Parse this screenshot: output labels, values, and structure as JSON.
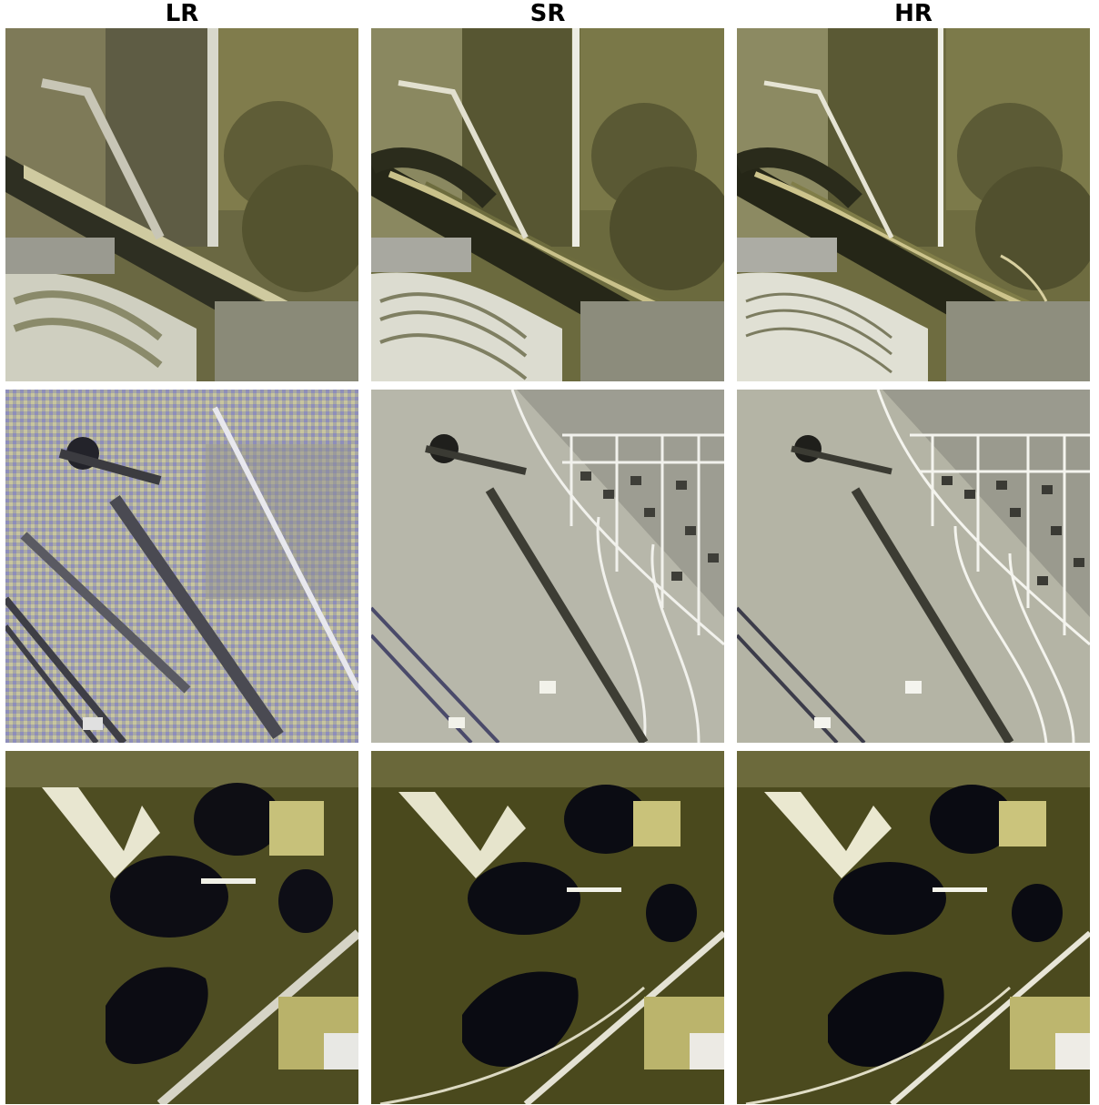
{
  "columns": [
    {
      "title": "LR"
    },
    {
      "title": "SR"
    },
    {
      "title": "HR"
    }
  ],
  "rows": [
    {
      "scene": "river-farmland",
      "palette": {
        "field": "#6f6a3e",
        "dark": "#2c2c1a",
        "bright": "#e4e2c4",
        "water": "#7d7a52"
      }
    },
    {
      "scene": "suburb-grassland",
      "palette": {
        "field": "#b5b5a8",
        "dark": "#3a3a30",
        "bright": "#f2f2ea",
        "noise": "#7c7cc8"
      }
    },
    {
      "scene": "lakes-forest",
      "palette": {
        "field": "#4c4a1f",
        "dark": "#2b2a10",
        "bright": "#f4f2da",
        "lake": "#0c0d14"
      }
    }
  ]
}
